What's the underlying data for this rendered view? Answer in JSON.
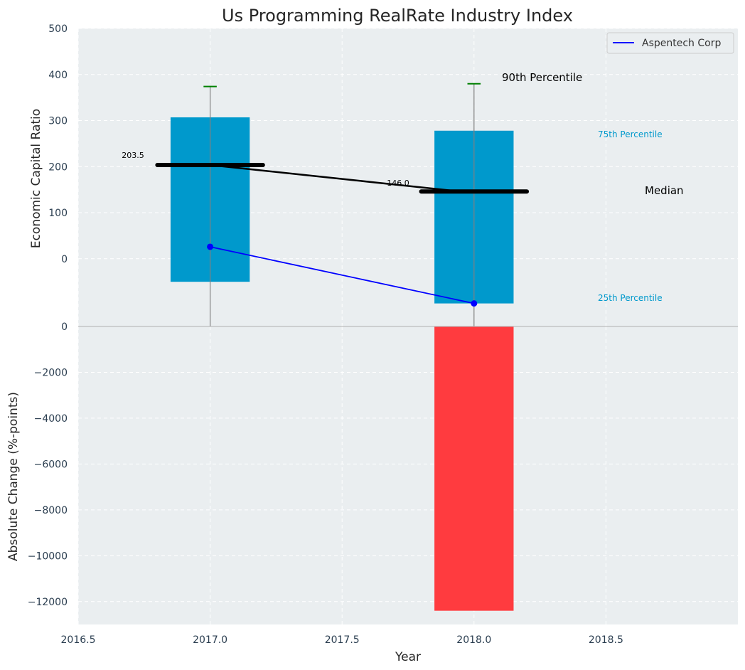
{
  "chart_data": {
    "type": "box",
    "title": "Us Programming RealRate Industry Index",
    "xlabel": "Year",
    "x_ticks": [
      "2016.5",
      "2017.0",
      "2017.5",
      "2018.0",
      "2018.5"
    ],
    "xlim": [
      2016.5,
      2019.0
    ],
    "grid": true,
    "panels": [
      {
        "ylabel": "Economic Capital Ratio",
        "ylim": [
          -147,
          500
        ],
        "y_ticks": [
          "0",
          "100",
          "200",
          "300",
          "400",
          "500"
        ],
        "boxes": [
          {
            "x": 2017.0,
            "p25": -50,
            "p75": 307,
            "median": 203.5,
            "p90": 374,
            "low": -147
          },
          {
            "x": 2018.0,
            "p25": -97,
            "p75": 278,
            "median": 146.0,
            "p90": 380,
            "low": -147
          }
        ],
        "median_labels": [
          "203.5",
          "146.0"
        ],
        "series": [
          {
            "name": "Aspentech Corp",
            "x": [
              2017.0,
              2018.0
            ],
            "values": [
              26,
              -97
            ],
            "color": "#0000ff"
          }
        ],
        "legend_position": "top-right",
        "annotations": {
          "p90": "90th Percentile",
          "p75": "75th Percentile",
          "median": "Median",
          "p25": "25th Percentile"
        },
        "colors": {
          "box": "#0099cc",
          "median": "#000000",
          "whisker": "#808080",
          "cap": "#008000"
        }
      },
      {
        "ylabel": "Absolute Change (%-points)",
        "ylim": [
          -13000,
          0
        ],
        "y_ticks": [
          "0",
          "−2000",
          "−4000",
          "−6000",
          "−8000",
          "−10000",
          "−12000"
        ],
        "bars": [
          {
            "x": 2018.0,
            "value": -12400,
            "color": "#ff3b3f"
          }
        ]
      }
    ]
  }
}
